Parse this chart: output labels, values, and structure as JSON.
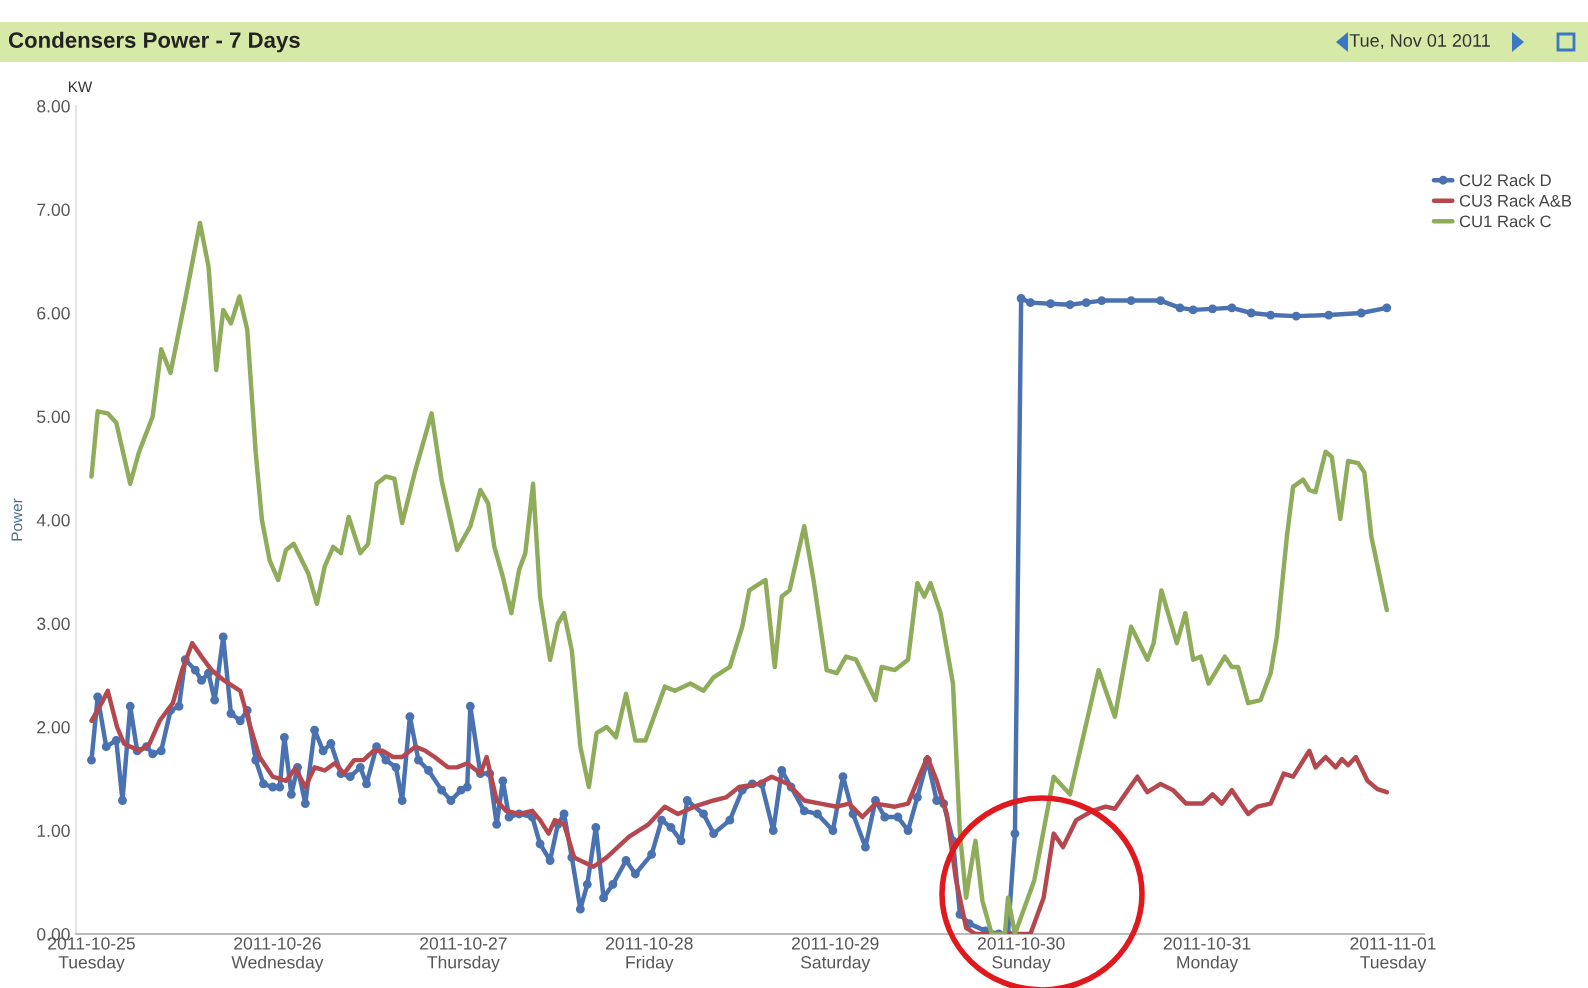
{
  "chart_data": {
    "type": "line",
    "title": "Condensers Power - 7 Days",
    "ylabel": "Power",
    "annotations": [
      "KW",
      "Tue, Nov 01 2011"
    ],
    "xlim": [
      "2011-10-24T22:00",
      "2011-11-01T04:00"
    ],
    "xticks": [
      {
        "value": "2011-10-25",
        "label": "2011-10-25\nTuesday"
      },
      {
        "value": "2011-10-26",
        "label": "2011-10-26\nWednesday"
      },
      {
        "value": "2011-10-27",
        "label": "2011-10-27\nThursday"
      },
      {
        "value": "2011-10-28",
        "label": "2011-10-28\nFriday"
      },
      {
        "value": "2011-10-29",
        "label": "2011-10-29\nSaturday"
      },
      {
        "value": "2011-10-30",
        "label": "2011-10-30\nSunday"
      },
      {
        "value": "2011-10-31",
        "label": "2011-10-31\nMonday"
      },
      {
        "value": "2011-11-01",
        "label": "2011-11-01\nTuesday"
      }
    ],
    "ylim": [
      0,
      8
    ],
    "yticks": [
      {
        "value": 0,
        "label": "0.00"
      },
      {
        "value": 1,
        "label": "1.00"
      },
      {
        "value": 2,
        "label": "2.00"
      },
      {
        "value": 3,
        "label": "3.00"
      },
      {
        "value": 4,
        "label": "4.00"
      },
      {
        "value": 5,
        "label": "5.00"
      },
      {
        "value": 6,
        "label": "6.00"
      },
      {
        "value": 7,
        "label": "7.00"
      },
      {
        "value": 8,
        "label": "8.00"
      }
    ],
    "grid": false,
    "legend": "top right",
    "line_style": "solid",
    "marker": "none",
    "series": [
      {
        "name": "CU2 Rack D",
        "color": "#4a72b0",
        "marker": "circle",
        "x": [
          "2011-10-25T00:00",
          "2011-10-25T00:48",
          "2011-10-25T01:54",
          "2011-10-25T03:12",
          "2011-10-25T04:00",
          "2011-10-25T05:00",
          "2011-10-25T05:54",
          "2011-10-25T07:06",
          "2011-10-25T07:54",
          "2011-10-25T09:00",
          "2011-10-25T10:12",
          "2011-10-25T11:18",
          "2011-10-25T12:06",
          "2011-10-25T13:24",
          "2011-10-25T14:12",
          "2011-10-25T15:06",
          "2011-10-25T15:54",
          "2011-10-25T17:00",
          "2011-10-25T18:00",
          "2011-10-25T19:12",
          "2011-10-25T20:06",
          "2011-10-25T21:12",
          "2011-10-25T22:12",
          "2011-10-25T23:24",
          "2011-10-26T00:18",
          "2011-10-26T00:54",
          "2011-10-26T01:48",
          "2011-10-26T02:36",
          "2011-10-26T03:36",
          "2011-10-26T04:48",
          "2011-10-26T05:54",
          "2011-10-26T06:54",
          "2011-10-26T08:12",
          "2011-10-26T09:24",
          "2011-10-26T10:42",
          "2011-10-26T11:30",
          "2011-10-26T12:48",
          "2011-10-26T14:00",
          "2011-10-26T15:18",
          "2011-10-26T16:06",
          "2011-10-26T17:06",
          "2011-10-26T18:12",
          "2011-10-26T19:30",
          "2011-10-26T21:12",
          "2011-10-26T22:24",
          "2011-10-26T23:42",
          "2011-10-27T00:30",
          "2011-10-27T00:54",
          "2011-10-27T02:12",
          "2011-10-27T03:24",
          "2011-10-27T04:18",
          "2011-10-27T05:06",
          "2011-10-27T05:54",
          "2011-10-27T07:12",
          "2011-10-27T08:54",
          "2011-10-27T09:54",
          "2011-10-27T11:12",
          "2011-10-27T12:12",
          "2011-10-27T13:00",
          "2011-10-27T14:00",
          "2011-10-27T15:06",
          "2011-10-27T16:00",
          "2011-10-27T17:06",
          "2011-10-27T18:06",
          "2011-10-27T19:18",
          "2011-10-27T21:00",
          "2011-10-27T22:12",
          "2011-10-28T00:18",
          "2011-10-28T01:36",
          "2011-10-28T02:48",
          "2011-10-28T04:06",
          "2011-10-28T04:54",
          "2011-10-28T07:00",
          "2011-10-28T08:18",
          "2011-10-28T10:24",
          "2011-10-28T12:00",
          "2011-10-28T13:18",
          "2011-10-28T14:30",
          "2011-10-28T16:00",
          "2011-10-28T17:06",
          "2011-10-28T18:18",
          "2011-10-28T20:00",
          "2011-10-28T21:42",
          "2011-10-28T23:42",
          "2011-10-29T01:00",
          "2011-10-29T02:18",
          "2011-10-29T03:54",
          "2011-10-29T05:12",
          "2011-10-29T06:24",
          "2011-10-29T08:06",
          "2011-10-29T09:24",
          "2011-10-29T10:36",
          "2011-10-29T11:54",
          "2011-10-29T13:06",
          "2011-10-29T14:00",
          "2011-10-29T15:12",
          "2011-10-29T16:06",
          "2011-10-29T17:18",
          "2011-10-29T19:24",
          "2011-10-29T21:06",
          "2011-10-29T22:18",
          "2011-10-29T23:12",
          "2011-10-30T00:00",
          "2011-10-30T01:12",
          "2011-10-30T03:48",
          "2011-10-30T06:18",
          "2011-10-30T08:24",
          "2011-10-30T10:24",
          "2011-10-30T14:12",
          "2011-10-30T18:00",
          "2011-10-30T20:30",
          "2011-10-30T22:12",
          "2011-10-31T00:42",
          "2011-10-31T03:12",
          "2011-10-31T05:42",
          "2011-10-31T08:12",
          "2011-10-31T11:30",
          "2011-10-31T15:42",
          "2011-10-31T19:54",
          "2011-10-31T23:12"
        ],
        "values": [
          1.68,
          2.29,
          1.81,
          1.87,
          1.29,
          2.2,
          1.77,
          1.81,
          1.74,
          1.77,
          2.16,
          2.2,
          2.65,
          2.55,
          2.45,
          2.52,
          2.26,
          2.87,
          2.13,
          2.06,
          2.16,
          1.68,
          1.45,
          1.42,
          1.42,
          1.9,
          1.35,
          1.61,
          1.26,
          1.97,
          1.77,
          1.84,
          1.55,
          1.52,
          1.61,
          1.45,
          1.81,
          1.68,
          1.61,
          1.29,
          2.1,
          1.68,
          1.58,
          1.39,
          1.29,
          1.39,
          1.42,
          2.2,
          1.55,
          1.55,
          1.06,
          1.48,
          1.13,
          1.16,
          1.13,
          0.87,
          0.71,
          1.06,
          1.16,
          0.74,
          0.24,
          0.48,
          1.03,
          0.35,
          0.48,
          0.71,
          0.58,
          0.77,
          1.1,
          1.03,
          0.9,
          1.29,
          1.16,
          0.97,
          1.1,
          1.39,
          1.45,
          1.45,
          1.0,
          1.58,
          1.42,
          1.19,
          1.16,
          1.0,
          1.52,
          1.16,
          0.84,
          1.29,
          1.13,
          1.13,
          1.0,
          1.32,
          1.68,
          1.29,
          1.26,
          0.9,
          0.19,
          0.1,
          0.03,
          0,
          0,
          0.97,
          6.14,
          6.1,
          6.09,
          6.08,
          6.1,
          6.12,
          6.12,
          6.12,
          6.05,
          6.03,
          6.04,
          6.05,
          6.0,
          5.98,
          5.97,
          5.98,
          6.0,
          6.05
        ]
      },
      {
        "name": "CU3 Rack A&B",
        "color": "#b5484f",
        "x": [
          "2011-10-25T00:00",
          "2011-10-25T01:18",
          "2011-10-25T02:06",
          "2011-10-25T03:18",
          "2011-10-25T04:12",
          "2011-10-25T05:00",
          "2011-10-25T06:18",
          "2011-10-25T07:30",
          "2011-10-25T08:48",
          "2011-10-25T10:30",
          "2011-10-25T11:42",
          "2011-10-25T13:00",
          "2011-10-25T14:12",
          "2011-10-25T15:30",
          "2011-10-25T17:06",
          "2011-10-25T19:12",
          "2011-10-25T20:30",
          "2011-10-25T21:42",
          "2011-10-25T23:24",
          "2011-10-26T01:06",
          "2011-10-26T02:18",
          "2011-10-26T03:36",
          "2011-10-26T04:48",
          "2011-10-26T06:06",
          "2011-10-26T07:24",
          "2011-10-26T08:36",
          "2011-10-26T09:54",
          "2011-10-26T11:06",
          "2011-10-26T12:24",
          "2011-10-26T13:36",
          "2011-10-26T14:54",
          "2011-10-26T16:06",
          "2011-10-26T17:48",
          "2011-10-26T19:06",
          "2011-10-26T20:18",
          "2011-10-26T22:00",
          "2011-10-26T23:12",
          "2011-10-27T00:30",
          "2011-10-27T02:12",
          "2011-10-27T03:00",
          "2011-10-27T04:18",
          "2011-10-27T05:30",
          "2011-10-27T07:12",
          "2011-10-27T08:54",
          "2011-10-27T09:54",
          "2011-10-27T11:00",
          "2011-10-27T11:48",
          "2011-10-27T13:00",
          "2011-10-27T14:18",
          "2011-10-27T15:06",
          "2011-10-27T16:48",
          "2011-10-27T18:30",
          "2011-10-27T21:24",
          "2011-10-27T23:54",
          "2011-10-28T02:00",
          "2011-10-28T03:42",
          "2011-10-28T05:48",
          "2011-10-28T08:18",
          "2011-10-28T09:54",
          "2011-10-28T11:36",
          "2011-10-28T14:06",
          "2011-10-28T15:48",
          "2011-10-28T17:54",
          "2011-10-28T20:00",
          "2011-10-28T22:06",
          "2011-10-29T00:12",
          "2011-10-29T01:48",
          "2011-10-29T03:30",
          "2011-10-29T05:12",
          "2011-10-29T07:42",
          "2011-10-29T09:24",
          "2011-10-29T10:36",
          "2011-10-29T11:54",
          "2011-10-29T13:06",
          "2011-10-29T14:24",
          "2011-10-29T15:36",
          "2011-10-29T16:54",
          "2011-10-29T18:06",
          "2011-10-30T01:12",
          "2011-10-30T02:54",
          "2011-10-30T04:12",
          "2011-10-30T05:24",
          "2011-10-30T07:06",
          "2011-10-30T09:12",
          "2011-10-30T10:54",
          "2011-10-30T12:06",
          "2011-10-30T15:00",
          "2011-10-30T16:18",
          "2011-10-30T18:00",
          "2011-10-30T19:36",
          "2011-10-30T21:18",
          "2011-10-30T23:24",
          "2011-10-31T00:42",
          "2011-10-31T01:54",
          "2011-10-31T03:12",
          "2011-10-31T05:18",
          "2011-10-31T06:30",
          "2011-10-31T08:12",
          "2011-10-31T09:54",
          "2011-10-31T11:06",
          "2011-10-31T13:12",
          "2011-10-31T14:00",
          "2011-10-31T15:18",
          "2011-10-31T16:36",
          "2011-10-31T17:24",
          "2011-10-31T18:12",
          "2011-10-31T19:12",
          "2011-10-31T20:42",
          "2011-10-31T22:00",
          "2011-10-31T23:12"
        ],
        "values": [
          2.06,
          2.23,
          2.35,
          2.0,
          1.84,
          1.81,
          1.77,
          1.84,
          2.06,
          2.23,
          2.55,
          2.81,
          2.68,
          2.55,
          2.45,
          2.35,
          2.0,
          1.71,
          1.52,
          1.48,
          1.6,
          1.42,
          1.61,
          1.58,
          1.65,
          1.55,
          1.68,
          1.68,
          1.77,
          1.77,
          1.71,
          1.71,
          1.81,
          1.77,
          1.71,
          1.61,
          1.61,
          1.65,
          1.55,
          1.71,
          1.29,
          1.19,
          1.16,
          1.19,
          1.1,
          0.97,
          1.1,
          1.06,
          0.74,
          0.71,
          0.65,
          0.74,
          0.94,
          1.06,
          1.23,
          1.16,
          1.23,
          1.29,
          1.32,
          1.42,
          1.45,
          1.52,
          1.45,
          1.29,
          1.26,
          1.23,
          1.26,
          1.13,
          1.26,
          1.23,
          1.26,
          1.48,
          1.71,
          1.48,
          1.16,
          0.52,
          0.06,
          0,
          0,
          0.35,
          0.97,
          0.84,
          1.1,
          1.19,
          1.23,
          1.21,
          1.52,
          1.37,
          1.45,
          1.39,
          1.26,
          1.26,
          1.35,
          1.26,
          1.39,
          1.16,
          1.23,
          1.26,
          1.55,
          1.52,
          1.77,
          1.61,
          1.71,
          1.61,
          1.69,
          1.63,
          1.71,
          1.48,
          1.4,
          1.37
        ]
      },
      {
        "name": "CU1 Rack C",
        "color": "#8fac5a",
        "x": [
          "2011-10-25T00:00",
          "2011-10-25T00:48",
          "2011-10-25T02:06",
          "2011-10-25T03:12",
          "2011-10-25T05:00",
          "2011-10-25T06:06",
          "2011-10-25T07:54",
          "2011-10-25T09:00",
          "2011-10-25T10:12",
          "2011-10-25T12:06",
          "2011-10-25T14:00",
          "2011-10-25T15:06",
          "2011-10-25T16:06",
          "2011-10-25T17:00",
          "2011-10-25T18:00",
          "2011-10-25T19:06",
          "2011-10-25T20:06",
          "2011-10-25T21:12",
          "2011-10-25T22:00",
          "2011-10-25T23:00",
          "2011-10-26T00:06",
          "2011-10-26T01:06",
          "2011-10-26T02:06",
          "2011-10-26T04:00",
          "2011-10-26T05:06",
          "2011-10-26T06:06",
          "2011-10-26T07:12",
          "2011-10-26T08:12",
          "2011-10-26T09:12",
          "2011-10-26T10:42",
          "2011-10-26T11:42",
          "2011-10-26T12:48",
          "2011-10-26T14:00",
          "2011-10-26T15:06",
          "2011-10-26T16:06",
          "2011-10-26T17:48",
          "2011-10-26T19:54",
          "2011-10-26T21:12",
          "2011-10-26T23:12",
          "2011-10-27T00:54",
          "2011-10-27T02:12",
          "2011-10-27T03:12",
          "2011-10-27T04:00",
          "2011-10-27T05:06",
          "2011-10-27T06:12",
          "2011-10-27T07:12",
          "2011-10-27T08:00",
          "2011-10-27T09:00",
          "2011-10-27T09:54",
          "2011-10-27T11:12",
          "2011-10-27T12:12",
          "2011-10-27T13:00",
          "2011-10-27T14:00",
          "2011-10-27T15:06",
          "2011-10-27T16:12",
          "2011-10-27T17:12",
          "2011-10-27T18:30",
          "2011-10-27T19:42",
          "2011-10-27T21:00",
          "2011-10-27T22:12",
          "2011-10-27T23:30",
          "2011-10-28T02:00",
          "2011-10-28T03:18",
          "2011-10-28T05:18",
          "2011-10-28T07:00",
          "2011-10-28T08:18",
          "2011-10-28T10:24",
          "2011-10-28T12:00",
          "2011-10-28T12:54",
          "2011-10-28T15:00",
          "2011-10-28T16:12",
          "2011-10-28T17:06",
          "2011-10-28T18:06",
          "2011-10-28T20:00",
          "2011-10-28T21:12",
          "2011-10-28T22:54",
          "2011-10-29T00:12",
          "2011-10-29T01:24",
          "2011-10-29T02:42",
          "2011-10-29T05:12",
          "2011-10-29T06:00",
          "2011-10-29T07:42",
          "2011-10-29T09:24",
          "2011-10-29T10:36",
          "2011-10-29T11:30",
          "2011-10-29T12:18",
          "2011-10-29T13:36",
          "2011-10-29T15:12",
          "2011-10-29T16:06",
          "2011-10-29T16:54",
          "2011-10-29T17:18",
          "2011-10-29T18:06",
          "2011-10-29T19:00",
          "2011-10-29T20:12",
          "2011-10-29T21:54",
          "2011-10-29T22:18",
          "2011-10-29T23:12",
          "2011-10-30T01:42",
          "2011-10-30T04:12",
          "2011-10-30T06:18",
          "2011-10-30T10:00",
          "2011-10-30T12:06",
          "2011-10-30T14:12",
          "2011-10-30T16:18",
          "2011-10-30T17:06",
          "2011-10-30T18:06",
          "2011-10-30T20:06",
          "2011-10-30T21:12",
          "2011-10-30T22:12",
          "2011-10-30T23:12",
          "2011-10-31T00:12",
          "2011-10-31T02:18",
          "2011-10-31T03:12",
          "2011-10-31T04:00",
          "2011-10-31T05:18",
          "2011-10-31T06:54",
          "2011-10-31T08:12",
          "2011-10-31T09:00",
          "2011-10-31T10:18",
          "2011-10-31T11:06",
          "2011-10-31T12:24",
          "2011-10-31T13:12",
          "2011-10-31T14:00",
          "2011-10-31T15:18",
          "2011-10-31T16:06",
          "2011-10-31T17:12",
          "2011-10-31T18:12",
          "2011-10-31T19:30",
          "2011-10-31T20:18",
          "2011-10-31T21:12",
          "2011-10-31T23:12"
        ],
        "values": [
          4.42,
          5.05,
          5.03,
          4.94,
          4.35,
          4.65,
          5.0,
          5.65,
          5.42,
          6.13,
          6.87,
          6.45,
          5.45,
          6.03,
          5.9,
          6.16,
          5.84,
          4.65,
          4.0,
          3.61,
          3.42,
          3.71,
          3.77,
          3.48,
          3.19,
          3.55,
          3.74,
          3.68,
          4.03,
          3.68,
          3.77,
          4.35,
          4.42,
          4.4,
          3.97,
          4.48,
          5.03,
          4.38,
          3.71,
          3.94,
          4.29,
          4.16,
          3.74,
          3.45,
          3.1,
          3.52,
          3.68,
          4.35,
          3.26,
          2.65,
          3.0,
          3.1,
          2.74,
          1.81,
          1.42,
          1.94,
          2.0,
          1.9,
          2.32,
          1.87,
          1.87,
          2.39,
          2.35,
          2.42,
          2.35,
          2.48,
          2.58,
          2.97,
          3.32,
          3.42,
          2.58,
          3.26,
          3.32,
          3.94,
          3.42,
          2.55,
          2.52,
          2.68,
          2.65,
          2.26,
          2.58,
          2.55,
          2.65,
          3.39,
          3.26,
          3.39,
          3.1,
          2.42,
          0.97,
          0.35,
          0.55,
          0.9,
          0.32,
          0,
          0,
          0.35,
          0,
          0.52,
          1.52,
          1.35,
          2.55,
          2.1,
          2.97,
          2.65,
          2.81,
          3.32,
          2.81,
          3.1,
          2.65,
          2.68,
          2.42,
          2.68,
          2.58,
          2.58,
          2.23,
          2.26,
          2.52,
          2.87,
          3.84,
          4.32,
          4.39,
          4.29,
          4.27,
          4.66,
          4.61,
          4.01,
          4.57,
          4.55,
          4.46,
          3.84,
          3.13
        ]
      }
    ]
  }
}
